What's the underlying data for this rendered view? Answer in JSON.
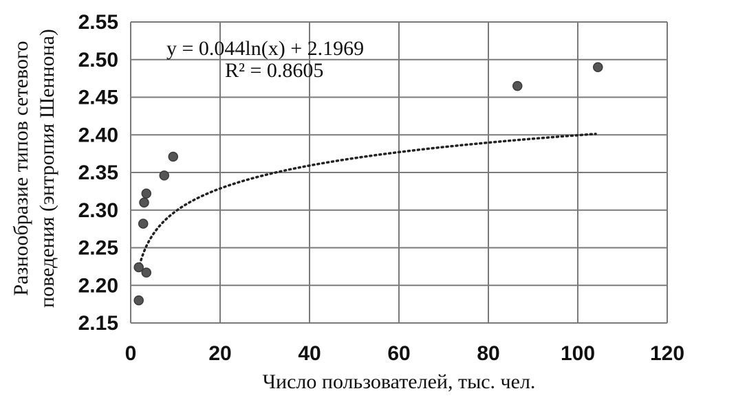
{
  "chart_data": {
    "type": "scatter",
    "xlabel": "Число пользователей, тыс. чел.",
    "ylabel_line1": "Разнообразие типов сетевого",
    "ylabel_line2": "поведения (энтропия Шеннона)",
    "xlim": [
      0,
      120
    ],
    "ylim": [
      2.15,
      2.55
    ],
    "x_ticks": [
      "0",
      "20",
      "40",
      "60",
      "80",
      "100",
      "120"
    ],
    "y_ticks": [
      "2.15",
      "2.20",
      "2.25",
      "2.30",
      "2.35",
      "2.40",
      "2.45",
      "2.50",
      "2.55"
    ],
    "grid": true,
    "points": [
      {
        "x": 1.8,
        "y": 2.18
      },
      {
        "x": 1.8,
        "y": 2.224
      },
      {
        "x": 3.5,
        "y": 2.217
      },
      {
        "x": 2.8,
        "y": 2.282
      },
      {
        "x": 3.0,
        "y": 2.31
      },
      {
        "x": 3.5,
        "y": 2.322
      },
      {
        "x": 7.5,
        "y": 2.346
      },
      {
        "x": 9.5,
        "y": 2.371
      },
      {
        "x": 86.5,
        "y": 2.465
      },
      {
        "x": 104.5,
        "y": 2.49
      }
    ],
    "trendline": {
      "type": "logarithmic",
      "a": 0.044,
      "b": 2.1969,
      "x_range": [
        2,
        104
      ],
      "equation_label": "y = 0.044ln(x) + 2.1969",
      "r2_label": "R² = 0.8605"
    }
  }
}
